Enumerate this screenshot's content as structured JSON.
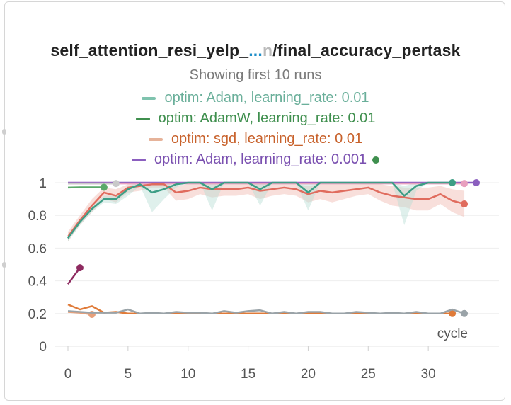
{
  "chart_data": {
    "type": "line",
    "title_main": "self_attention_resi_yelp_",
    "title_ellipsis": "...",
    "title_faded": "n",
    "title_rest": "/final_accuracy_pertask",
    "subtitle": "Showing first 10 runs",
    "xlabel": "cycle",
    "xlim": [
      0,
      35
    ],
    "ylim": [
      0,
      1
    ],
    "x_ticks": [
      0,
      5,
      10,
      15,
      20,
      25,
      30
    ],
    "y_ticks": [
      0,
      0.2,
      0.4,
      0.6,
      0.8,
      1
    ],
    "y_tick_labels": [
      "0",
      "0.2",
      "0.4",
      "0.6",
      "0.8",
      "1"
    ],
    "legend": [
      {
        "label": "optim: Adam, learning_rate: 0.01",
        "color": "#7fc3ae",
        "text_color": "#6aaf9a"
      },
      {
        "label": "optim: AdamW, learning_rate: 0.01",
        "color": "#3f8f4e",
        "text_color": "#3f8f4e"
      },
      {
        "label": "optim: sgd, learning_rate: 0.01",
        "color": "#e6b39a",
        "text_color": "#c8622c"
      },
      {
        "label": "optim: Adam, learning_rate: 0.001",
        "color": "#8b5fbf",
        "text_color": "#7a50b0",
        "marker_color": "#3f8f4e"
      }
    ],
    "series": [
      {
        "color": "#8b5fbf",
        "x": [
          0,
          34
        ],
        "y": [
          1.0,
          1.0
        ],
        "end_marker": true
      },
      {
        "color": "#e8a0bf",
        "x": [
          0,
          33
        ],
        "y": [
          0.995,
          0.995
        ],
        "end_marker": true
      },
      {
        "color": "#c9c9c9",
        "x": [
          0,
          4
        ],
        "y": [
          0.995,
          0.995
        ],
        "end_marker": true
      },
      {
        "color": "#5aa96a",
        "x": [
          0,
          1,
          2,
          3
        ],
        "y": [
          0.97,
          0.972,
          0.972,
          0.972
        ],
        "end_marker": true
      },
      {
        "color": "#e06c5e",
        "x": [
          0,
          1,
          2,
          3,
          4,
          5,
          6,
          7,
          8,
          9,
          10,
          11,
          12,
          13,
          14,
          15,
          16,
          17,
          18,
          19,
          20,
          21,
          22,
          23,
          24,
          25,
          26,
          27,
          28,
          29,
          30,
          31,
          32,
          33
        ],
        "y": [
          0.67,
          0.77,
          0.86,
          0.94,
          0.92,
          0.97,
          0.98,
          0.99,
          0.99,
          0.94,
          0.95,
          0.97,
          0.96,
          0.96,
          0.96,
          0.97,
          0.95,
          0.96,
          0.97,
          0.96,
          0.93,
          0.95,
          0.94,
          0.95,
          0.96,
          0.97,
          0.94,
          0.92,
          0.91,
          0.9,
          0.9,
          0.93,
          0.89,
          0.87
        ],
        "end_marker": true,
        "band": {
          "upper": [
            0.7,
            0.8,
            0.9,
            0.97,
            0.96,
            0.99,
            1.0,
            1.0,
            1.0,
            0.98,
            0.99,
            1.0,
            1.0,
            0.99,
            0.99,
            1.0,
            0.99,
            0.99,
            1.0,
            0.99,
            0.98,
            0.99,
            0.99,
            0.99,
            0.99,
            1.0,
            0.99,
            0.98,
            0.97,
            0.97,
            0.97,
            0.98,
            0.96,
            0.95
          ],
          "lower": [
            0.64,
            0.74,
            0.82,
            0.9,
            0.88,
            0.94,
            0.95,
            0.97,
            0.97,
            0.89,
            0.9,
            0.93,
            0.91,
            0.92,
            0.92,
            0.93,
            0.9,
            0.92,
            0.93,
            0.92,
            0.88,
            0.9,
            0.88,
            0.9,
            0.92,
            0.93,
            0.89,
            0.86,
            0.85,
            0.83,
            0.83,
            0.87,
            0.82,
            0.79
          ],
          "color": "#f0b8b0"
        }
      },
      {
        "color": "#3d9e86",
        "x": [
          0,
          1,
          2,
          3,
          4,
          5,
          6,
          7,
          8,
          9,
          10,
          11,
          12,
          13,
          14,
          15,
          16,
          17,
          18,
          19,
          20,
          21,
          22,
          23,
          24,
          25,
          26,
          27,
          28,
          29,
          30,
          31,
          32
        ],
        "y": [
          0.66,
          0.76,
          0.84,
          0.9,
          0.9,
          0.96,
          0.99,
          0.94,
          0.96,
          0.99,
          1.0,
          1.0,
          0.96,
          1.0,
          1.0,
          1.0,
          0.96,
          1.0,
          1.0,
          1.0,
          0.94,
          1.0,
          1.0,
          1.0,
          1.0,
          1.0,
          1.0,
          1.0,
          0.92,
          0.98,
          1.0,
          1.0,
          1.0
        ],
        "end_marker": true,
        "band": {
          "upper": [
            0.68,
            0.78,
            0.86,
            0.92,
            0.92,
            0.98,
            1.0,
            0.99,
            0.99,
            1.0,
            1.0,
            1.0,
            0.99,
            1.0,
            1.0,
            1.0,
            0.99,
            1.0,
            1.0,
            1.0,
            0.99,
            1.0,
            1.0,
            1.0,
            1.0,
            1.0,
            1.0,
            1.0,
            0.98,
            1.0,
            1.0,
            1.0,
            1.0
          ],
          "lower": [
            0.64,
            0.74,
            0.82,
            0.88,
            0.87,
            0.92,
            0.98,
            0.82,
            0.9,
            0.97,
            1.0,
            1.0,
            0.83,
            1.0,
            1.0,
            1.0,
            0.86,
            1.0,
            1.0,
            1.0,
            0.83,
            1.0,
            1.0,
            1.0,
            1.0,
            1.0,
            1.0,
            1.0,
            0.74,
            0.95,
            1.0,
            1.0,
            1.0
          ],
          "color": "#b7ddd4"
        }
      },
      {
        "color": "#8e2a60",
        "x": [
          0,
          1
        ],
        "y": [
          0.38,
          0.48
        ],
        "end_marker": true
      },
      {
        "color": "#e07b39",
        "x": [
          0,
          1,
          2,
          3,
          4,
          5,
          6,
          7,
          8,
          9,
          10,
          11,
          12,
          13,
          14,
          15,
          16,
          17,
          18,
          19,
          20,
          21,
          22,
          23,
          24,
          25,
          26,
          27,
          28,
          29,
          30,
          31,
          32
        ],
        "y": [
          0.255,
          0.225,
          0.245,
          0.205,
          0.21,
          0.2,
          0.2,
          0.2,
          0.2,
          0.2,
          0.2,
          0.2,
          0.2,
          0.2,
          0.2,
          0.2,
          0.2,
          0.2,
          0.2,
          0.2,
          0.2,
          0.2,
          0.2,
          0.2,
          0.2,
          0.2,
          0.2,
          0.2,
          0.2,
          0.2,
          0.2,
          0.2,
          0.2
        ],
        "end_marker": true
      },
      {
        "color": "#e8a07a",
        "x": [
          0,
          1,
          2
        ],
        "y": [
          0.21,
          0.205,
          0.195
        ],
        "end_marker": true
      },
      {
        "color": "#9aa3a8",
        "x": [
          0,
          1,
          2,
          3,
          4,
          5,
          6,
          7,
          8,
          9,
          10,
          11,
          12,
          13,
          14,
          15,
          16,
          17,
          18,
          19,
          20,
          21,
          22,
          23,
          24,
          25,
          26,
          27,
          28,
          29,
          30,
          31,
          32,
          33
        ],
        "y": [
          0.215,
          0.21,
          0.205,
          0.205,
          0.205,
          0.225,
          0.2,
          0.205,
          0.2,
          0.21,
          0.205,
          0.205,
          0.2,
          0.215,
          0.205,
          0.215,
          0.22,
          0.2,
          0.21,
          0.2,
          0.21,
          0.21,
          0.2,
          0.2,
          0.21,
          0.205,
          0.2,
          0.205,
          0.2,
          0.21,
          0.2,
          0.2,
          0.225,
          0.2
        ],
        "end_marker": true
      }
    ]
  }
}
